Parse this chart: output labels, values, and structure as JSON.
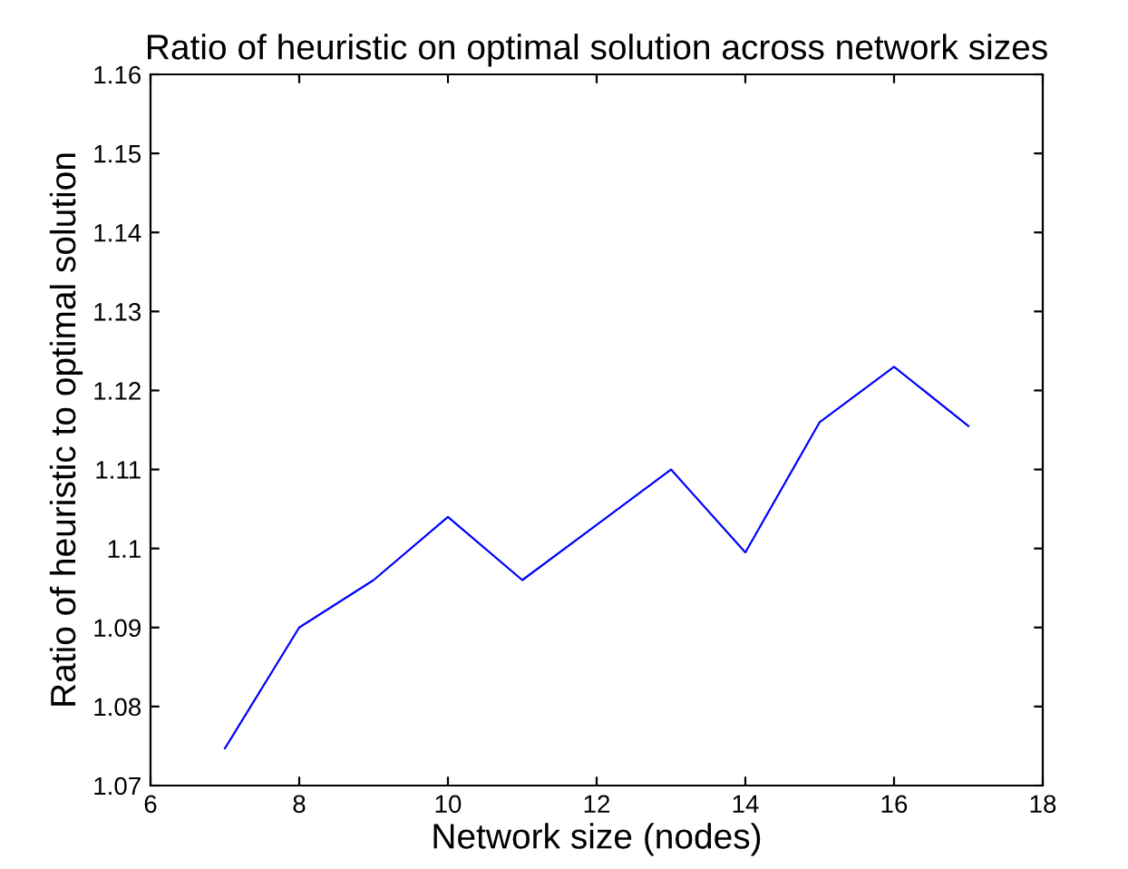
{
  "chart_data": {
    "type": "line",
    "title": "Ratio of heuristic on optimal solution across network sizes",
    "xlabel": "Network size (nodes)",
    "ylabel": "Ratio of heuristic to optimal solution",
    "x": [
      7,
      8,
      9,
      10,
      11,
      12,
      13,
      14,
      15,
      16,
      17
    ],
    "series": [
      {
        "color": "#0000ff",
        "values": [
          1.0747,
          1.09,
          1.096,
          1.104,
          1.096,
          1.103,
          1.11,
          1.0995,
          1.116,
          1.123,
          1.1155
        ]
      }
    ],
    "xlim": [
      6,
      18
    ],
    "xticks": [
      6,
      8,
      10,
      12,
      14,
      16,
      18
    ],
    "ylim": [
      1.07,
      1.16
    ],
    "yticks": [
      {
        "value": 1.07,
        "label": "1.07"
      },
      {
        "value": 1.08,
        "label": "1.08"
      },
      {
        "value": 1.09,
        "label": "1.09"
      },
      {
        "value": 1.1,
        "label": "1.1"
      },
      {
        "value": 1.11,
        "label": "1.11"
      },
      {
        "value": 1.12,
        "label": "1.12"
      },
      {
        "value": 1.13,
        "label": "1.13"
      },
      {
        "value": 1.14,
        "label": "1.14"
      },
      {
        "value": 1.15,
        "label": "1.15"
      },
      {
        "value": 1.16,
        "label": "1.16"
      }
    ],
    "grid": false,
    "marker": "none",
    "line_style": "solid"
  }
}
